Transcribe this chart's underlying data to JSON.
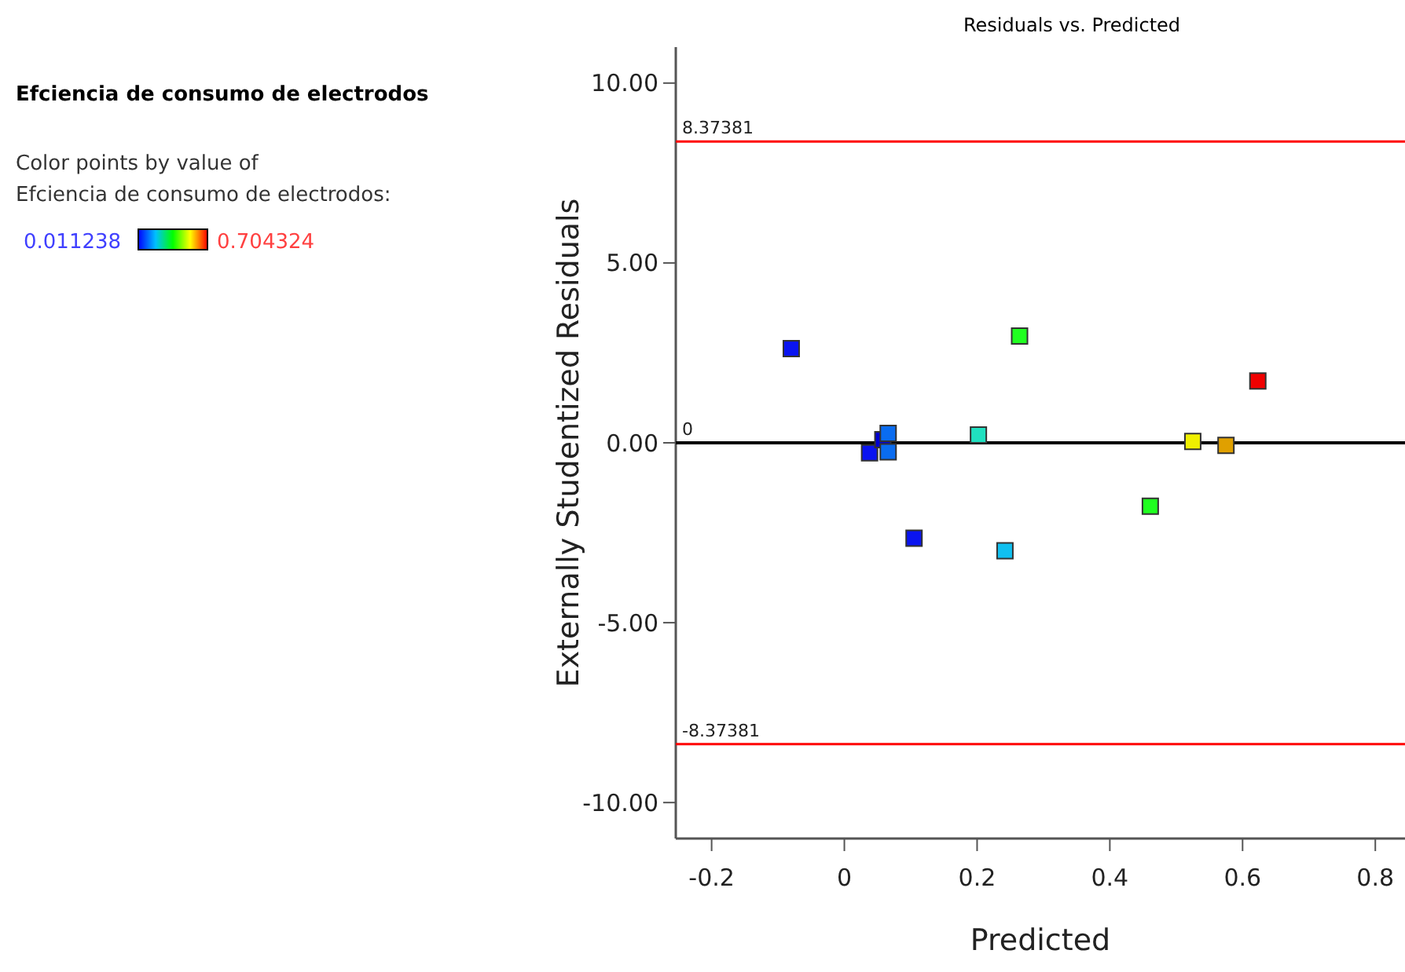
{
  "chart_data": {
    "type": "scatter",
    "title": "Residuals vs. Predicted",
    "xlabel": "Predicted",
    "ylabel": "Externally Studentized Residuals",
    "annotations": [
      "Efciencia de consumo de electrodos",
      "Color points by value of",
      "Efciencia de consumo de electrodos:",
      "0.011238",
      "0.704324"
    ],
    "marker": "square",
    "grid": false,
    "xlim": [
      -0.254,
      0.84
    ],
    "xticks": [
      -0.2,
      0,
      0.2,
      0.4,
      0.6,
      0.8
    ],
    "ylim": [
      -11,
      11
    ],
    "yticks": [
      {
        "value": -10,
        "label": "-10.00"
      },
      {
        "value": -5,
        "label": "-5.00"
      },
      {
        "value": 0,
        "label": "0.00"
      },
      {
        "value": 5,
        "label": "5.00"
      },
      {
        "value": 10,
        "label": "10.00"
      }
    ],
    "x": [
      -0.08,
      0.038,
      0.058,
      0.066,
      0.066,
      0.105,
      0.202,
      0.264,
      0.242,
      0.461,
      0.525,
      0.575,
      0.623
    ],
    "values": [
      2.62,
      -0.28,
      0.09,
      0.26,
      -0.25,
      -2.65,
      0.22,
      2.97,
      -3.0,
      -1.76,
      0.04,
      -0.07,
      1.72
    ],
    "colors": [
      "#0a14f0",
      "#0a14f0",
      "#0000d0",
      "#0a6cf0",
      "#0a6cf0",
      "#0a14f0",
      "#20e0c0",
      "#20ff20",
      "#10c0f0",
      "#20ff20",
      "#f0f000",
      "#e0a000",
      "#f00000"
    ],
    "ref_lines": [
      {
        "axis": "y",
        "value": 8.37381,
        "label": "8.37381",
        "color": "#ff0000"
      },
      {
        "axis": "y",
        "value": 0,
        "label": "0",
        "color": "#000000"
      },
      {
        "axis": "y",
        "value": -8.37381,
        "label": "-8.37381",
        "color": "#ff0000"
      }
    ]
  }
}
